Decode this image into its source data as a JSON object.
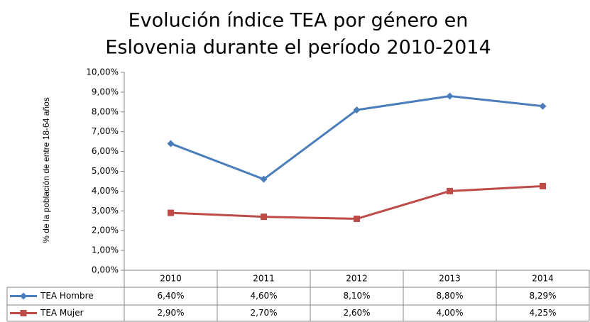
{
  "chart_data": {
    "type": "line",
    "title": [
      "Evolución índice TEA por género en",
      "Eslovenia durante el período 2010-2014"
    ],
    "y_axis_label": "% de la población de entre 18-64 años",
    "categories": [
      "2010",
      "2011",
      "2012",
      "2013",
      "2014"
    ],
    "series": [
      {
        "name": "TEA Hombre",
        "color": "#4a7ebb",
        "marker": "diamond",
        "values": [
          6.4,
          4.6,
          8.1,
          8.8,
          8.29
        ],
        "value_labels": [
          "6,40%",
          "4,60%",
          "8,10%",
          "8,80%",
          "8,29%"
        ]
      },
      {
        "name": "TEA Mujer",
        "color": "#be4b48",
        "marker": "square",
        "values": [
          2.9,
          2.7,
          2.6,
          4.0,
          4.25
        ],
        "value_labels": [
          "2,90%",
          "2,70%",
          "2,60%",
          "4,00%",
          "4,25%"
        ]
      }
    ],
    "ylim": [
      0,
      10
    ],
    "yticks": [
      {
        "value": 0,
        "label": "0,00%"
      },
      {
        "value": 1,
        "label": "1,00%"
      },
      {
        "value": 2,
        "label": "2,00%"
      },
      {
        "value": 3,
        "label": "3,00%"
      },
      {
        "value": 4,
        "label": "4,00%"
      },
      {
        "value": 5,
        "label": "5,00%"
      },
      {
        "value": 6,
        "label": "6,00%"
      },
      {
        "value": 7,
        "label": "7,00%"
      },
      {
        "value": 8,
        "label": "8,00%"
      },
      {
        "value": 9,
        "label": "9,00%"
      },
      {
        "value": 10,
        "label": "10,00%"
      }
    ],
    "grid": false
  }
}
